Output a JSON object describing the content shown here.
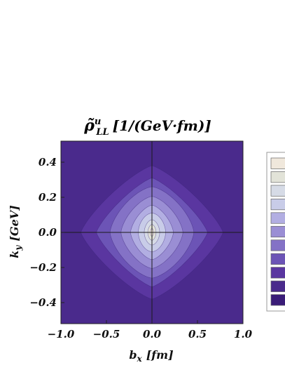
{
  "chart_data": {
    "type": "heatmap",
    "subtype": "contour",
    "title": {
      "symbol": "ρ̃",
      "superscript": "u",
      "subscript": "LL",
      "units": "[1/(GeV·fm)]"
    },
    "xlabel": {
      "var": "b",
      "sub": "x",
      "unit": "[fm]"
    },
    "ylabel": {
      "var": "k",
      "sub": "y",
      "unit": "[GeV]"
    },
    "xlim": [
      -1.0,
      1.0
    ],
    "ylim": [
      -0.52,
      0.52
    ],
    "xticks": [
      "−1.0",
      "−0.5",
      "0.0",
      "0.5",
      "1.0"
    ],
    "xtick_values": [
      -1.0,
      -0.5,
      0.0,
      0.5,
      1.0
    ],
    "yticks": [
      "0.4",
      "0.2",
      "0.0",
      "−0.2",
      "−0.4"
    ],
    "ytick_values": [
      0.4,
      0.2,
      0.0,
      -0.2,
      -0.4
    ],
    "crosshair": true,
    "grid": false,
    "levels": [
      {
        "color": "#4a2a8c"
      },
      {
        "color": "#5a36a0",
        "half_width_bx": 0.78,
        "half_height_ky": 0.38
      },
      {
        "color": "#6c54b6",
        "half_width_bx": 0.61,
        "half_height_ky": 0.31
      },
      {
        "color": "#8472c6",
        "half_width_bx": 0.46,
        "half_height_ky": 0.26
      },
      {
        "color": "#9a8ed4",
        "half_width_bx": 0.34,
        "half_height_ky": 0.205
      },
      {
        "color": "#b2aee2",
        "half_width_bx": 0.235,
        "half_height_ky": 0.155
      },
      {
        "color": "#c8cce8",
        "half_width_bx": 0.15,
        "half_height_ky": 0.11
      },
      {
        "color": "#d6dbe6",
        "half_width_bx": 0.085,
        "half_height_ky": 0.072
      },
      {
        "color": "#e2e3d8",
        "half_width_bx": 0.045,
        "half_height_ky": 0.045
      },
      {
        "color": "#f0e8dc",
        "half_width_bx": 0.02,
        "half_height_ky": 0.022
      }
    ],
    "legend": {
      "placement": "right",
      "colors": [
        "#f0e8dc",
        "#e2e3d8",
        "#d6dbe6",
        "#c8cce8",
        "#b2aee2",
        "#9a8ed4",
        "#8472c6",
        "#6c54b6",
        "#5a36a0",
        "#4a2a8c",
        "#3a1c78"
      ]
    }
  }
}
